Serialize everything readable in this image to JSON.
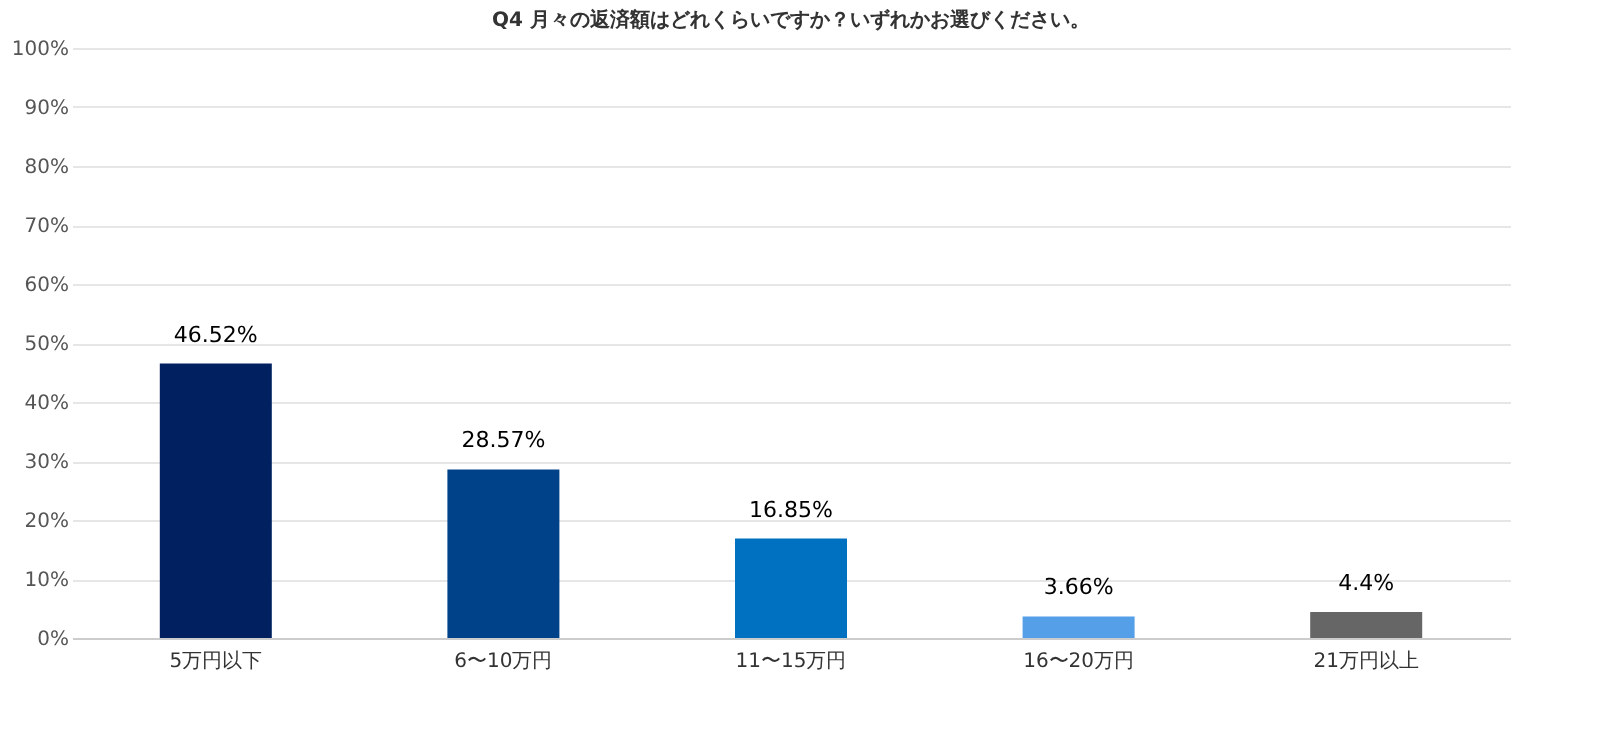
{
  "chart_data": {
    "type": "bar",
    "title": "Q4 月々の返済額はどれくらいですか？いずれかお選びください。",
    "categories": [
      "5万円以下",
      "6〜10万円",
      "11〜15万円",
      "16〜20万円",
      "21万円以上"
    ],
    "values": [
      46.52,
      28.57,
      16.85,
      3.66,
      4.4
    ],
    "colors": [
      "#002060",
      "#004289",
      "#0070c0",
      "#559ee8",
      "#666666"
    ],
    "value_labels": [
      "46.52%",
      "28.57%",
      "16.85%",
      "3.66%",
      "4.4%"
    ],
    "ylim": [
      0,
      100
    ],
    "yticks": [
      {
        "value": 0,
        "label": "0%"
      },
      {
        "value": 10,
        "label": "10%"
      },
      {
        "value": 20,
        "label": "20%"
      },
      {
        "value": 30,
        "label": "30%"
      },
      {
        "value": 40,
        "label": "40%"
      },
      {
        "value": 50,
        "label": "50%"
      },
      {
        "value": 60,
        "label": "60%"
      },
      {
        "value": 70,
        "label": "70%"
      },
      {
        "value": 80,
        "label": "80%"
      },
      {
        "value": 90,
        "label": "90%"
      },
      {
        "value": 100,
        "label": "100%"
      }
    ],
    "grid": "y"
  }
}
